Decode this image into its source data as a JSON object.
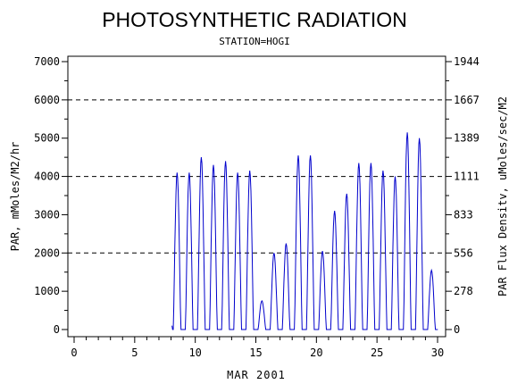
{
  "chart_data": {
    "type": "line",
    "title": "PHOTOSYNTHETIC RADIATION",
    "subtitle": "STATION=HOGI",
    "xlabel": "MAR 2001",
    "ylabel": "PAR, mMoles/M2/hr",
    "y2label": "PAR Flux Densitv, uMoles/sec/M2",
    "xlim": [
      0,
      30
    ],
    "ylim": [
      0,
      7000
    ],
    "x_ticks": [
      "0",
      "5",
      "10",
      "15",
      "20",
      "25",
      "30"
    ],
    "y_ticks": [
      "0",
      "1000",
      "2000",
      "3000",
      "4000",
      "5000",
      "6000",
      "7000"
    ],
    "y2_ticks": [
      "0",
      "278",
      "556",
      "833",
      "1111",
      "1389",
      "1667",
      "1944"
    ],
    "reference_lines_y": [
      2000,
      4000,
      6000
    ],
    "line_color": "#0000cc",
    "series": [
      {
        "daily_peaks": [
          {
            "day": 8.5,
            "peak": 4100
          },
          {
            "day": 9.5,
            "peak": 4100
          },
          {
            "day": 10.5,
            "peak": 4500
          },
          {
            "day": 11.5,
            "peak": 4300
          },
          {
            "day": 12.5,
            "peak": 4400
          },
          {
            "day": 13.5,
            "peak": 4100
          },
          {
            "day": 14.5,
            "peak": 4150
          },
          {
            "day": 15.5,
            "peak": 750
          },
          {
            "day": 16.5,
            "peak": 2000
          },
          {
            "day": 17.5,
            "peak": 2250
          },
          {
            "day": 18.5,
            "peak": 4550
          },
          {
            "day": 19.5,
            "peak": 4550
          },
          {
            "day": 20.5,
            "peak": 2050
          },
          {
            "day": 21.5,
            "peak": 3100
          },
          {
            "day": 22.5,
            "peak": 3550
          },
          {
            "day": 23.5,
            "peak": 4350
          },
          {
            "day": 24.5,
            "peak": 4350
          },
          {
            "day": 25.5,
            "peak": 4150
          },
          {
            "day": 26.5,
            "peak": 4000
          },
          {
            "day": 27.5,
            "peak": 5150
          },
          {
            "day": 28.5,
            "peak": 5000
          },
          {
            "day": 29.5,
            "peak": 1550
          }
        ]
      }
    ]
  }
}
